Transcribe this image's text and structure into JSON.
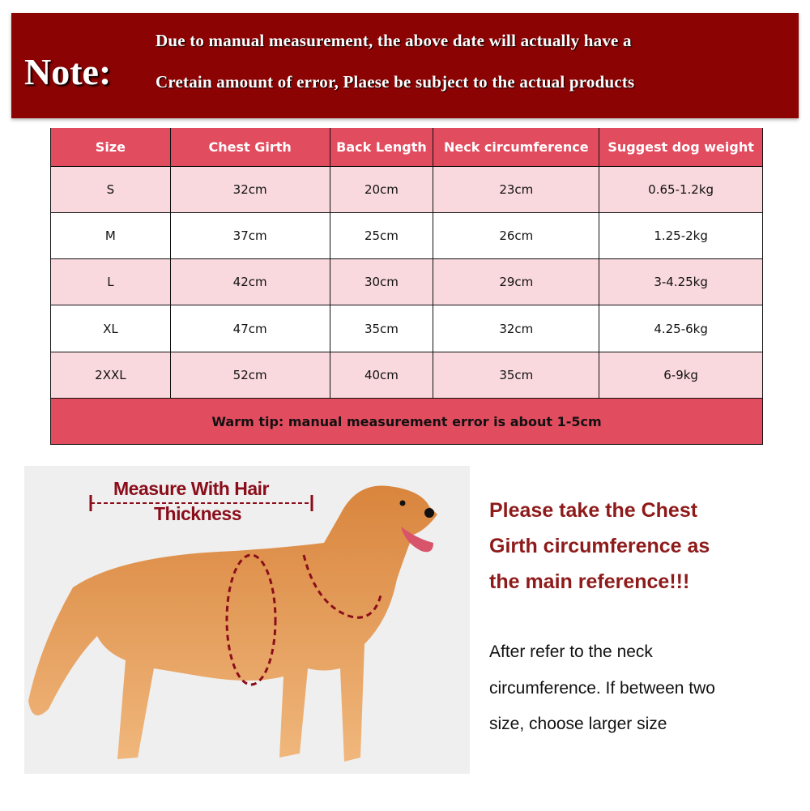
{
  "note": {
    "label": "Note:",
    "line1": "Due to manual measurement, the above date will actually have a",
    "line2": "Cretain amount of error, Plaese be subject to the actual products"
  },
  "table": {
    "headers": [
      "Size",
      "Chest Girth",
      "Back Length",
      "Neck circumference",
      "Suggest dog weight"
    ],
    "rows": [
      [
        "S",
        "32cm",
        "20cm",
        "23cm",
        "0.65-1.2kg"
      ],
      [
        "M",
        "37cm",
        "25cm",
        "26cm",
        "1.25-2kg"
      ],
      [
        "L",
        "42cm",
        "30cm",
        "29cm",
        "3-4.25kg"
      ],
      [
        "XL",
        "47cm",
        "35cm",
        "32cm",
        "4.25-6kg"
      ],
      [
        "2XXL",
        "52cm",
        "40cm",
        "35cm",
        "6-9kg"
      ]
    ],
    "tip": "Warm tip: manual measurement error is about 1-5cm"
  },
  "photo": {
    "caption1": "Measure With Hair",
    "caption2": "Thickness"
  },
  "reference": {
    "line1": "Please take the Chest",
    "line2": "Girth circumference as",
    "line3": "the main reference!!!"
  },
  "advice": {
    "line1": "After refer to the neck",
    "line2": "circumference. If between two",
    "line3": "size, choose larger size"
  },
  "colors": {
    "banner": "#8c0303",
    "header": "#e24c5f",
    "pink_row": "#f9d9dd",
    "reference_text": "#8e1a1a"
  }
}
